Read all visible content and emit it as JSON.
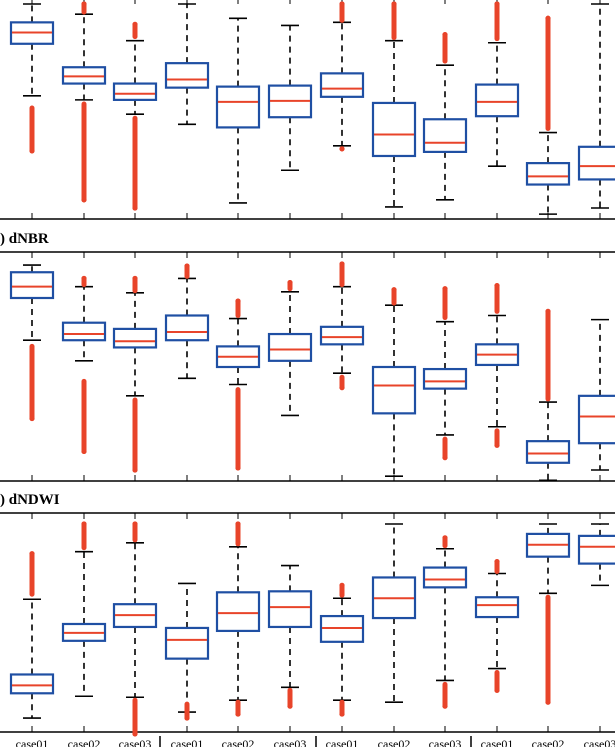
{
  "chart_data": [
    {
      "type": "boxplot",
      "title": "",
      "categories": [
        "case01",
        "case02",
        "case03",
        "case01",
        "case02",
        "case03",
        "case01",
        "case02",
        "case03",
        "case01",
        "case02",
        "case03"
      ],
      "ylim": [
        0,
        10
      ],
      "boxes": [
        {
          "wlo": 5.5,
          "q1": 8.05,
          "med": 8.6,
          "q3": 9.1,
          "whi": 10.0,
          "out_lo": [
            4.9,
            2.8
          ],
          "out_hi": []
        },
        {
          "wlo": 5.3,
          "q1": 6.1,
          "med": 6.45,
          "q3": 6.9,
          "whi": 9.5,
          "out_lo": [
            5.1,
            0.4
          ],
          "out_hi": [
            9.6,
            10.0
          ]
        },
        {
          "wlo": 4.6,
          "q1": 5.3,
          "med": 5.6,
          "q3": 6.1,
          "whi": 8.2,
          "out_lo": [
            4.4,
            0.0
          ],
          "out_hi": [
            8.4,
            9.0
          ]
        },
        {
          "wlo": 4.1,
          "q1": 5.9,
          "med": 6.3,
          "q3": 7.1,
          "whi": 10.0,
          "out_lo": [],
          "out_hi": []
        },
        {
          "wlo": 0.25,
          "q1": 3.95,
          "med": 5.2,
          "q3": 5.95,
          "whi": 9.3,
          "out_lo": [],
          "out_hi": []
        },
        {
          "wlo": 1.85,
          "q1": 4.45,
          "med": 5.25,
          "q3": 6.0,
          "whi": 8.95,
          "out_lo": [],
          "out_hi": []
        },
        {
          "wlo": 3.05,
          "q1": 5.45,
          "med": 5.85,
          "q3": 6.6,
          "whi": 9.1,
          "out_lo": [
            2.9
          ],
          "out_hi": [
            9.2,
            10.0
          ]
        },
        {
          "wlo": 0.05,
          "q1": 2.55,
          "med": 3.6,
          "q3": 5.15,
          "whi": 8.2,
          "out_lo": [],
          "out_hi": [
            8.35,
            10.0
          ]
        },
        {
          "wlo": 0.4,
          "q1": 2.75,
          "med": 3.2,
          "q3": 4.35,
          "whi": 7.0,
          "out_lo": [],
          "out_hi": [
            7.2,
            8.5
          ]
        },
        {
          "wlo": 2.05,
          "q1": 4.5,
          "med": 5.2,
          "q3": 6.05,
          "whi": 8.1,
          "out_lo": [],
          "out_hi": [
            8.3,
            10.0
          ]
        },
        {
          "wlo": -0.3,
          "q1": 1.15,
          "med": 1.55,
          "q3": 2.2,
          "whi": 3.7,
          "out_lo": [],
          "out_hi": [
            3.9,
            9.3
          ]
        },
        {
          "wlo": 0.0,
          "q1": 1.4,
          "med": 2.05,
          "q3": 3.0,
          "whi": 10.0,
          "out_lo": [],
          "out_hi": []
        }
      ]
    },
    {
      "type": "boxplot",
      "title": ") dNBR",
      "categories": [
        "case01",
        "case02",
        "case03",
        "case01",
        "case02",
        "case03",
        "case01",
        "case02",
        "case03",
        "case01",
        "case02",
        "case03"
      ],
      "ylim": [
        0,
        10
      ],
      "boxes": [
        {
          "wlo": 6.3,
          "q1": 8.35,
          "med": 8.9,
          "q3": 9.6,
          "whi": 9.95,
          "out_lo": [
            6.0,
            2.5
          ],
          "out_hi": []
        },
        {
          "wlo": 5.3,
          "q1": 6.3,
          "med": 6.6,
          "q3": 7.15,
          "whi": 8.9,
          "out_lo": [
            4.3,
            0.9
          ],
          "out_hi": [
            9.0,
            9.3
          ]
        },
        {
          "wlo": 3.6,
          "q1": 5.95,
          "med": 6.25,
          "q3": 6.85,
          "whi": 8.6,
          "out_lo": [
            3.4,
            0.0
          ],
          "out_hi": [
            8.7,
            9.3
          ]
        },
        {
          "wlo": 4.45,
          "q1": 6.3,
          "med": 6.7,
          "q3": 7.5,
          "whi": 9.3,
          "out_lo": [],
          "out_hi": [
            9.4,
            9.9
          ]
        },
        {
          "wlo": 4.15,
          "q1": 5.0,
          "med": 5.5,
          "q3": 6.0,
          "whi": 7.35,
          "out_lo": [
            3.9,
            0.1
          ],
          "out_hi": [
            7.5,
            8.2
          ]
        },
        {
          "wlo": 2.65,
          "q1": 5.3,
          "med": 5.85,
          "q3": 6.6,
          "whi": 8.65,
          "out_lo": [],
          "out_hi": [
            8.8,
            9.1
          ]
        },
        {
          "wlo": 4.7,
          "q1": 6.1,
          "med": 6.45,
          "q3": 6.95,
          "whi": 8.9,
          "out_lo": [
            4.5,
            4.0
          ],
          "out_hi": [
            9.0,
            10.0
          ]
        },
        {
          "wlo": -0.3,
          "q1": 2.75,
          "med": 4.1,
          "q3": 5.0,
          "whi": 8.0,
          "out_lo": [],
          "out_hi": [
            8.1,
            8.75
          ]
        },
        {
          "wlo": 1.7,
          "q1": 3.95,
          "med": 4.3,
          "q3": 4.9,
          "whi": 7.2,
          "out_lo": [
            1.5,
            0.6
          ],
          "out_hi": [
            7.4,
            8.8
          ]
        },
        {
          "wlo": 2.1,
          "q1": 5.1,
          "med": 5.6,
          "q3": 6.1,
          "whi": 7.5,
          "out_lo": [
            1.9,
            1.2
          ],
          "out_hi": [
            7.7,
            8.95
          ]
        },
        {
          "wlo": -0.5,
          "q1": 0.35,
          "med": 0.8,
          "q3": 1.4,
          "whi": 3.3,
          "out_lo": [],
          "out_hi": [
            3.45,
            7.7
          ]
        },
        {
          "wlo": 0.0,
          "q1": 1.3,
          "med": 2.6,
          "q3": 3.6,
          "whi": 7.3,
          "out_lo": [],
          "out_hi": []
        }
      ]
    },
    {
      "type": "boxplot",
      "title": ") dNDWI",
      "categories": [
        "case01",
        "case02",
        "case03",
        "case01",
        "case02",
        "case03",
        "case01",
        "case02",
        "case03",
        "case01",
        "case02",
        "case03"
      ],
      "ylim": [
        0,
        10
      ],
      "boxes": [
        {
          "wlo": 0.2,
          "q1": 1.45,
          "med": 1.85,
          "q3": 2.4,
          "whi": 6.2,
          "out_lo": [],
          "out_hi": [
            6.45,
            8.5
          ]
        },
        {
          "wlo": 1.3,
          "q1": 4.1,
          "med": 4.5,
          "q3": 4.95,
          "whi": 8.6,
          "out_lo": [],
          "out_hi": [
            8.8,
            10.0
          ]
        },
        {
          "wlo": 1.25,
          "q1": 4.8,
          "med": 5.4,
          "q3": 5.95,
          "whi": 9.05,
          "out_lo": [
            1.1,
            -0.6
          ],
          "out_hi": [
            9.2,
            10.0
          ]
        },
        {
          "wlo": 0.5,
          "q1": 3.2,
          "med": 4.15,
          "q3": 4.75,
          "whi": 7.0,
          "out_lo": [
            0.9,
            0.2
          ],
          "out_hi": []
        },
        {
          "wlo": 1.1,
          "q1": 4.6,
          "med": 5.5,
          "q3": 6.55,
          "whi": 8.85,
          "out_lo": [
            1.0,
            0.4
          ],
          "out_hi": [
            9.0,
            10.0
          ]
        },
        {
          "wlo": 1.75,
          "q1": 4.8,
          "med": 5.8,
          "q3": 6.6,
          "whi": 7.9,
          "out_lo": [
            1.6,
            0.8
          ],
          "out_hi": []
        },
        {
          "wlo": 1.1,
          "q1": 4.05,
          "med": 4.75,
          "q3": 5.35,
          "whi": 6.25,
          "out_lo": [
            1.0,
            0.4
          ],
          "out_hi": [
            6.4,
            6.9
          ]
        },
        {
          "wlo": 1.0,
          "q1": 5.25,
          "med": 6.25,
          "q3": 7.3,
          "whi": 10.0,
          "out_lo": [],
          "out_hi": []
        },
        {
          "wlo": 2.1,
          "q1": 6.8,
          "med": 7.2,
          "q3": 7.8,
          "whi": 8.75,
          "out_lo": [
            1.9,
            0.8
          ],
          "out_hi": [
            8.9,
            9.3
          ]
        },
        {
          "wlo": 2.7,
          "q1": 5.3,
          "med": 5.9,
          "q3": 6.3,
          "whi": 7.5,
          "out_lo": [
            2.5,
            1.6
          ],
          "out_hi": [
            7.6,
            8.1
          ]
        },
        {
          "wlo": 6.5,
          "q1": 8.35,
          "med": 8.95,
          "q3": 9.5,
          "whi": 10.0,
          "out_lo": [
            6.3,
            1.0
          ],
          "out_hi": []
        },
        {
          "wlo": 6.9,
          "q1": 8.0,
          "med": 8.85,
          "q3": 9.4,
          "whi": 10.0,
          "out_lo": [],
          "out_hi": []
        }
      ]
    }
  ],
  "colors": {
    "box": "#1f4fa3",
    "median": "#e8442a",
    "outlier": "#e8442a",
    "whisker": "#000000",
    "frame": "#000000"
  }
}
